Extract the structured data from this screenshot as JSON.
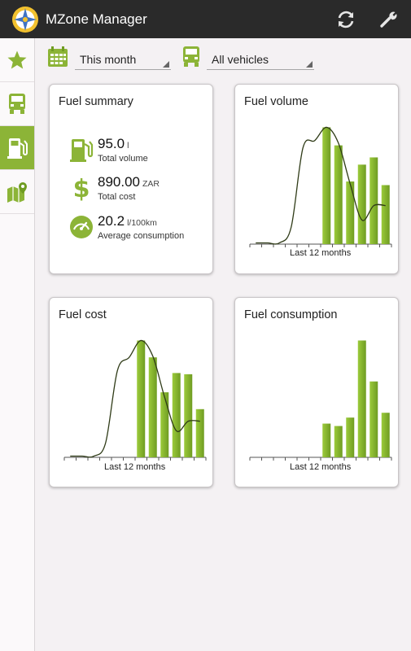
{
  "app": {
    "title": "MZone Manager"
  },
  "icons": {
    "logo": "compass-logo-icon",
    "refresh": "refresh-icon",
    "settings": "wrench-icon",
    "sidebar": [
      "star-icon",
      "truck-icon",
      "fuel-pump-icon",
      "map-pin-icon"
    ],
    "calendar": "calendar-icon",
    "vehicle": "truck-icon"
  },
  "colors": {
    "accent": "#8cb437",
    "bar_light": "#9ccb3b",
    "bar_dark": "#6f9c22",
    "line": "#2f3b17",
    "actionbar": "#2a2a2a"
  },
  "filters": {
    "period": "This month",
    "vehicles": "All vehicles"
  },
  "fuel_summary": {
    "title": "Fuel summary",
    "volume": {
      "value": "95.0",
      "unit": "l",
      "label": "Total volume"
    },
    "cost": {
      "value": "890.00",
      "unit": "ZAR",
      "label": "Total cost"
    },
    "consumption": {
      "value": "20.2",
      "unit": "l/100km",
      "label": "Average consumption"
    }
  },
  "chart_data": [
    {
      "type": "bar",
      "title": "Fuel volume",
      "xlabel": "Last 12 months",
      "bars": [
        0,
        0,
        0,
        0,
        0,
        0,
        0.97,
        0.82,
        0.52,
        0.66,
        0.72,
        0.49
      ],
      "line": [
        0.01,
        0.01,
        0.01,
        0.14,
        0.8,
        0.86,
        0.97,
        0.84,
        0.5,
        0.2,
        0.32,
        0.32
      ]
    },
    {
      "type": "bar",
      "title": "Fuel cost",
      "xlabel": "Last 12 months",
      "bars": [
        0,
        0,
        0,
        0,
        0,
        0,
        0.97,
        0.83,
        0.54,
        0.7,
        0.69,
        0.4
      ],
      "line": [
        0.01,
        0.01,
        0.01,
        0.12,
        0.72,
        0.83,
        0.97,
        0.84,
        0.5,
        0.22,
        0.3,
        0.3
      ]
    },
    {
      "type": "bar",
      "title": "Fuel consumption",
      "xlabel": "Last 12 months",
      "bars": [
        0,
        0,
        0,
        0,
        0,
        0,
        0.28,
        0.26,
        0.33,
        0.97,
        0.63,
        0.37
      ],
      "line": []
    }
  ]
}
